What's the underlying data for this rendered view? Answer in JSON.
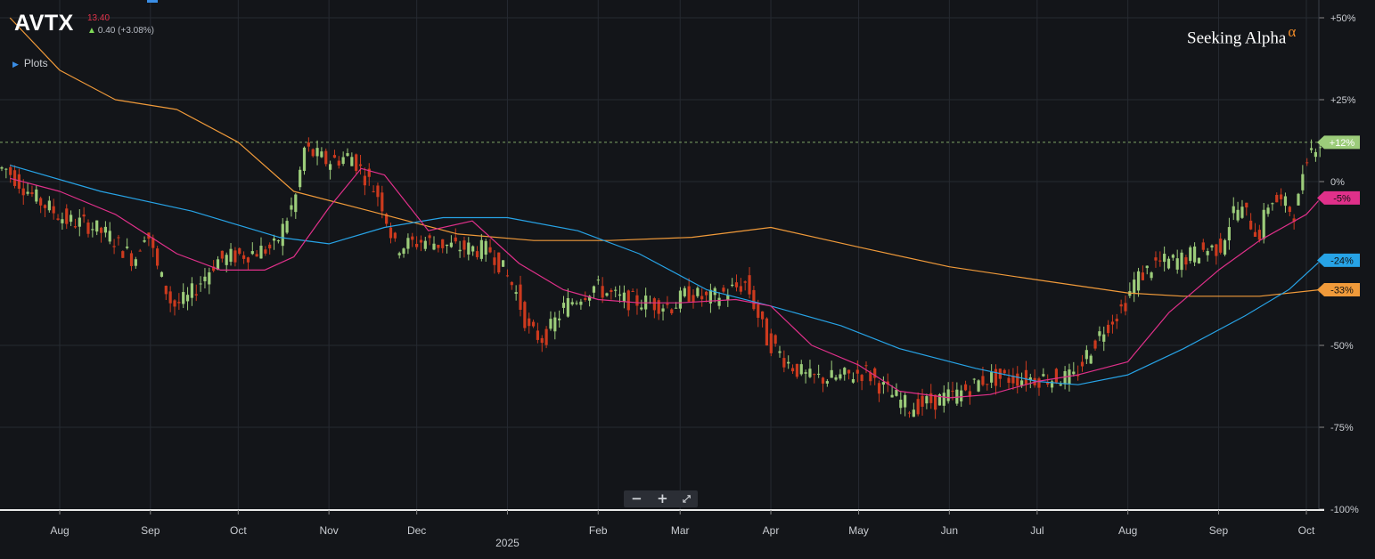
{
  "header": {
    "ticker": "AVTX",
    "price": "13.40",
    "change": "0.40 (+3.08%)",
    "plots_label": "Plots",
    "logo_text": "Seeking Alpha",
    "logo_symbol": "α"
  },
  "zoom_controls": {
    "minus": "−",
    "plus": "+",
    "expand": "⤢"
  },
  "chart_data": {
    "type": "candlestick",
    "y_unit": "percent change",
    "ylim": [
      -100,
      50
    ],
    "y_ticks": [
      {
        "v": 50,
        "label": "+50%"
      },
      {
        "v": 25,
        "label": "+25%"
      },
      {
        "v": 0,
        "label": "0%"
      },
      {
        "v": -50,
        "label": "-50%"
      },
      {
        "v": -75,
        "label": "-75%"
      },
      {
        "v": -100,
        "label": "-100%"
      }
    ],
    "x_ticks": [
      "Aug",
      "Sep",
      "Oct",
      "Nov",
      "Dec",
      "2025",
      "Feb",
      "Mar",
      "Apr",
      "May",
      "Jun",
      "Jul",
      "Aug",
      "Sep",
      "Oct"
    ],
    "year_label": "2025",
    "current_level": 12,
    "grid": true,
    "colors": {
      "up": "#9ccc7a",
      "down": "#cc3a1e",
      "ma_short": "#e0308a",
      "ma_mid": "#27a3e6",
      "ma_long": "#f09a3a",
      "bg": "#131519"
    },
    "price_points": [
      [
        "2024-07-15",
        4
      ],
      [
        "2024-07-25",
        -5
      ],
      [
        "2024-08-05",
        -12
      ],
      [
        "2024-08-12",
        -13
      ],
      [
        "2024-08-20",
        -17
      ],
      [
        "2024-08-28",
        -24
      ],
      [
        "2024-09-01",
        -14
      ],
      [
        "2024-09-05",
        -27
      ],
      [
        "2024-09-10",
        -38
      ],
      [
        "2024-09-15",
        -36
      ],
      [
        "2024-09-25",
        -24
      ],
      [
        "2024-10-05",
        -22
      ],
      [
        "2024-10-15",
        -20
      ],
      [
        "2024-10-22",
        -5
      ],
      [
        "2024-10-25",
        10
      ],
      [
        "2024-11-02",
        6
      ],
      [
        "2024-11-10",
        8
      ],
      [
        "2024-11-20",
        -5
      ],
      [
        "2024-11-25",
        -20
      ],
      [
        "2024-12-05",
        -18
      ],
      [
        "2024-12-15",
        -20
      ],
      [
        "2024-12-28",
        -21
      ],
      [
        "2025-01-05",
        -33
      ],
      [
        "2025-01-10",
        -46
      ],
      [
        "2025-01-15",
        -48
      ],
      [
        "2025-01-22",
        -38
      ],
      [
        "2025-02-01",
        -32
      ],
      [
        "2025-02-10",
        -36
      ],
      [
        "2025-02-20",
        -37
      ],
      [
        "2025-02-28",
        -38
      ],
      [
        "2025-03-05",
        -34
      ],
      [
        "2025-03-12",
        -36
      ],
      [
        "2025-03-20",
        -33
      ],
      [
        "2025-03-25",
        -31
      ],
      [
        "2025-04-01",
        -48
      ],
      [
        "2025-04-08",
        -55
      ],
      [
        "2025-04-15",
        -60
      ],
      [
        "2025-04-25",
        -60
      ],
      [
        "2025-05-05",
        -58
      ],
      [
        "2025-05-12",
        -64
      ],
      [
        "2025-05-20",
        -69
      ],
      [
        "2025-05-28",
        -67
      ],
      [
        "2025-06-05",
        -65
      ],
      [
        "2025-06-15",
        -60
      ],
      [
        "2025-06-25",
        -60
      ],
      [
        "2025-07-05",
        -60
      ],
      [
        "2025-07-15",
        -60
      ],
      [
        "2025-07-20",
        -52
      ],
      [
        "2025-07-25",
        -45
      ],
      [
        "2025-08-01",
        -38
      ],
      [
        "2025-08-05",
        -30
      ],
      [
        "2025-08-12",
        -25
      ],
      [
        "2025-08-20",
        -24
      ],
      [
        "2025-08-28",
        -21
      ],
      [
        "2025-09-03",
        -20
      ],
      [
        "2025-09-08",
        -8
      ],
      [
        "2025-09-12",
        -10
      ],
      [
        "2025-09-16",
        -17
      ],
      [
        "2025-09-20",
        -5
      ],
      [
        "2025-09-25",
        -7
      ],
      [
        "2025-09-29",
        -10
      ],
      [
        "2025-10-02",
        8
      ],
      [
        "2025-10-06",
        12
      ]
    ],
    "ma_short": [
      [
        "2024-07-15",
        1
      ],
      [
        "2024-08-01",
        -3
      ],
      [
        "2024-08-20",
        -10
      ],
      [
        "2024-09-10",
        -22
      ],
      [
        "2024-09-25",
        -27
      ],
      [
        "2024-10-10",
        -27
      ],
      [
        "2024-10-20",
        -23
      ],
      [
        "2024-11-01",
        -8
      ],
      [
        "2024-11-12",
        4
      ],
      [
        "2024-11-20",
        2
      ],
      [
        "2024-12-05",
        -15
      ],
      [
        "2024-12-20",
        -12
      ],
      [
        "2025-01-05",
        -25
      ],
      [
        "2025-01-20",
        -33
      ],
      [
        "2025-02-01",
        -36
      ],
      [
        "2025-02-15",
        -37
      ],
      [
        "2025-03-01",
        -37
      ],
      [
        "2025-03-20",
        -36
      ],
      [
        "2025-04-01",
        -38
      ],
      [
        "2025-04-15",
        -50
      ],
      [
        "2025-05-01",
        -56
      ],
      [
        "2025-05-15",
        -64
      ],
      [
        "2025-06-01",
        -66
      ],
      [
        "2025-06-15",
        -65
      ],
      [
        "2025-07-01",
        -61
      ],
      [
        "2025-07-15",
        -59
      ],
      [
        "2025-08-01",
        -55
      ],
      [
        "2025-08-15",
        -40
      ],
      [
        "2025-09-01",
        -27
      ],
      [
        "2025-09-15",
        -18
      ],
      [
        "2025-10-01",
        -10
      ],
      [
        "2025-10-06",
        -5
      ]
    ],
    "ma_mid": [
      [
        "2024-07-15",
        5
      ],
      [
        "2024-08-15",
        -3
      ],
      [
        "2024-09-15",
        -9
      ],
      [
        "2024-10-15",
        -17
      ],
      [
        "2024-11-01",
        -19
      ],
      [
        "2024-11-20",
        -14
      ],
      [
        "2024-12-10",
        -11
      ],
      [
        "2025-01-01",
        -11
      ],
      [
        "2025-01-25",
        -15
      ],
      [
        "2025-02-15",
        -22
      ],
      [
        "2025-03-10",
        -33
      ],
      [
        "2025-04-01",
        -38
      ],
      [
        "2025-04-25",
        -44
      ],
      [
        "2025-05-15",
        -51
      ],
      [
        "2025-06-10",
        -57
      ],
      [
        "2025-07-01",
        -61
      ],
      [
        "2025-07-15",
        -62
      ],
      [
        "2025-08-01",
        -59
      ],
      [
        "2025-08-20",
        -51
      ],
      [
        "2025-09-10",
        -41
      ],
      [
        "2025-09-25",
        -33
      ],
      [
        "2025-10-06",
        -24
      ]
    ],
    "ma_long": [
      [
        "2024-07-15",
        50
      ],
      [
        "2024-08-01",
        34
      ],
      [
        "2024-08-20",
        25
      ],
      [
        "2024-09-10",
        22
      ],
      [
        "2024-10-01",
        12
      ],
      [
        "2024-10-20",
        -3
      ],
      [
        "2024-11-15",
        -9
      ],
      [
        "2024-12-15",
        -16
      ],
      [
        "2025-01-10",
        -18
      ],
      [
        "2025-02-05",
        -18
      ],
      [
        "2025-03-05",
        -17
      ],
      [
        "2025-04-01",
        -14
      ],
      [
        "2025-05-01",
        -20
      ],
      [
        "2025-06-01",
        -26
      ],
      [
        "2025-07-01",
        -30
      ],
      [
        "2025-08-01",
        -34
      ],
      [
        "2025-08-20",
        -35
      ],
      [
        "2025-09-15",
        -35
      ],
      [
        "2025-10-06",
        -33
      ]
    ],
    "price_labels": [
      {
        "name": "current",
        "value": 12,
        "label": "+12%",
        "color": "#9ccc7a"
      },
      {
        "name": "ma-short",
        "value": -5,
        "label": "-5%",
        "color": "#e0308a"
      },
      {
        "name": "ma-mid",
        "value": -24,
        "label": "-24%",
        "color": "#27a3e6"
      },
      {
        "name": "ma-long",
        "value": -33,
        "label": "-33%",
        "color": "#f09a3a"
      }
    ]
  }
}
